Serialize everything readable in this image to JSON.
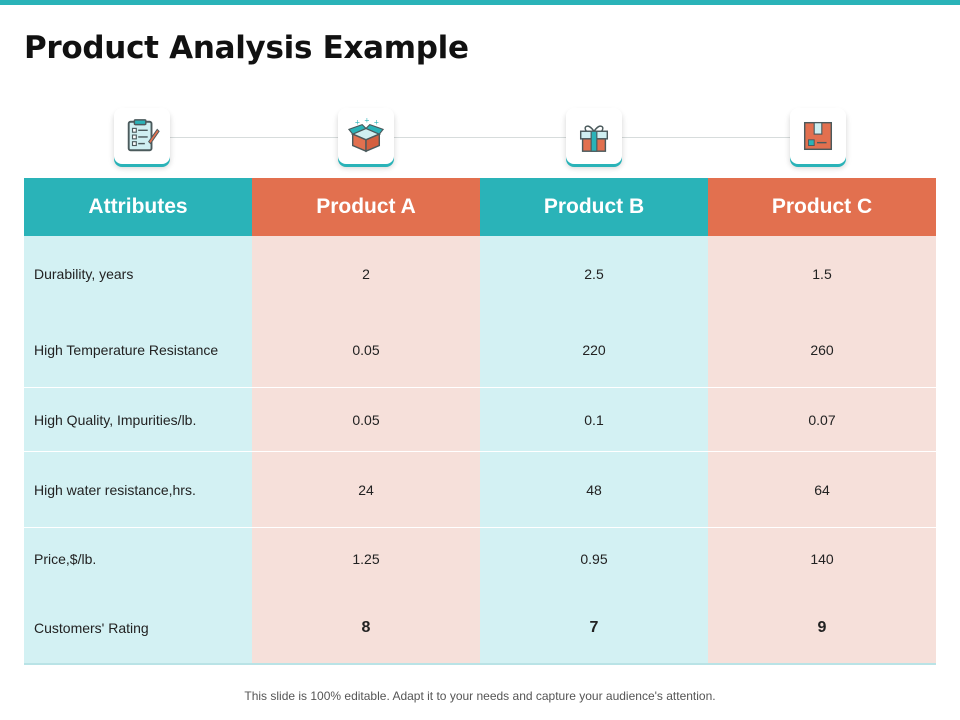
{
  "slide": {
    "title": "Product Analysis Example",
    "footer": "This slide is 100% editable. Adapt it to your needs and capture your audience's attention."
  },
  "icons": [
    "checklist-icon",
    "open-box-icon",
    "gift-icon",
    "package-icon"
  ],
  "colors": {
    "teal": "#2ab3b8",
    "orange": "#e2704f",
    "light_teal": "#d3f1f3",
    "light_pink": "#f6e0da"
  },
  "table": {
    "headers": [
      "Attributes",
      "Product A",
      "Product B",
      "Product C"
    ],
    "rows": [
      {
        "attribute": "Durability, years",
        "values": [
          "2",
          "2.5",
          "1.5"
        ]
      },
      {
        "attribute": "High Temperature Resistance",
        "values": [
          "0.05",
          "220",
          "260"
        ]
      },
      {
        "attribute": "High Quality, Impurities/lb.",
        "values": [
          "0.05",
          "0.1",
          "0.07"
        ]
      },
      {
        "attribute": "High water resistance,hrs.",
        "values": [
          "24",
          "48",
          "64"
        ]
      },
      {
        "attribute": "Price,$/lb.",
        "values": [
          "1.25",
          "0.95",
          "140"
        ]
      },
      {
        "attribute": "Customers' Rating",
        "values": [
          "8",
          "7",
          "9"
        ]
      }
    ]
  }
}
